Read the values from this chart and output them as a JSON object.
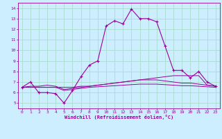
{
  "xlabel": "Windchill (Refroidissement éolien,°C)",
  "bg_color": "#cceeff",
  "line_color": "#990099",
  "grid_color": "#aaddcc",
  "xlim": [
    -0.5,
    23.5
  ],
  "ylim": [
    4.5,
    14.5
  ],
  "xticks": [
    0,
    1,
    2,
    3,
    4,
    5,
    6,
    7,
    8,
    9,
    10,
    11,
    12,
    13,
    14,
    15,
    16,
    17,
    18,
    19,
    20,
    21,
    22,
    23
  ],
  "yticks": [
    5,
    6,
    7,
    8,
    9,
    10,
    11,
    12,
    13,
    14
  ],
  "lines": [
    {
      "x": [
        0,
        1,
        2,
        3,
        4,
        5,
        6,
        7,
        8,
        9,
        10,
        11,
        12,
        13,
        14,
        15,
        16,
        17,
        18,
        19,
        20,
        21,
        22,
        23
      ],
      "y": [
        6.5,
        7.0,
        6.0,
        6.0,
        5.9,
        5.0,
        6.2,
        7.5,
        8.6,
        9.0,
        12.3,
        12.8,
        12.5,
        13.9,
        13.0,
        13.0,
        12.7,
        10.4,
        8.1,
        8.1,
        7.4,
        8.0,
        7.0,
        6.6
      ],
      "marker": true
    },
    {
      "x": [
        0,
        1,
        2,
        3,
        4,
        5,
        6,
        7,
        8,
        9,
        10,
        11,
        12,
        13,
        14,
        15,
        16,
        17,
        18,
        19,
        20,
        21,
        22,
        23
      ],
      "y": [
        6.5,
        6.5,
        6.5,
        6.5,
        6.5,
        6.5,
        6.5,
        6.6,
        6.6,
        6.7,
        6.8,
        6.9,
        7.0,
        7.1,
        7.2,
        7.3,
        7.4,
        7.5,
        7.6,
        7.6,
        7.6,
        7.6,
        6.7,
        6.6
      ],
      "marker": false
    },
    {
      "x": [
        0,
        1,
        2,
        3,
        4,
        5,
        6,
        7,
        8,
        9,
        10,
        11,
        12,
        13,
        14,
        15,
        16,
        17,
        18,
        19,
        20,
        21,
        22,
        23
      ],
      "y": [
        6.5,
        6.6,
        6.6,
        6.7,
        6.6,
        6.3,
        6.4,
        6.5,
        6.6,
        6.7,
        6.8,
        6.9,
        7.0,
        7.1,
        7.2,
        7.2,
        7.2,
        7.1,
        7.0,
        6.9,
        6.9,
        6.8,
        6.7,
        6.6
      ],
      "marker": false
    },
    {
      "x": [
        0,
        1,
        2,
        3,
        4,
        5,
        6,
        7,
        8,
        9,
        10,
        11,
        12,
        13,
        14,
        15,
        16,
        17,
        18,
        19,
        20,
        21,
        22,
        23
      ],
      "y": [
        6.5,
        6.5,
        6.5,
        6.5,
        6.5,
        6.2,
        6.3,
        6.4,
        6.5,
        6.55,
        6.6,
        6.65,
        6.7,
        6.75,
        6.8,
        6.8,
        6.8,
        6.75,
        6.7,
        6.65,
        6.65,
        6.6,
        6.55,
        6.5
      ],
      "marker": false
    }
  ],
  "font_size": 4.5,
  "xlabel_font_size": 5.0
}
